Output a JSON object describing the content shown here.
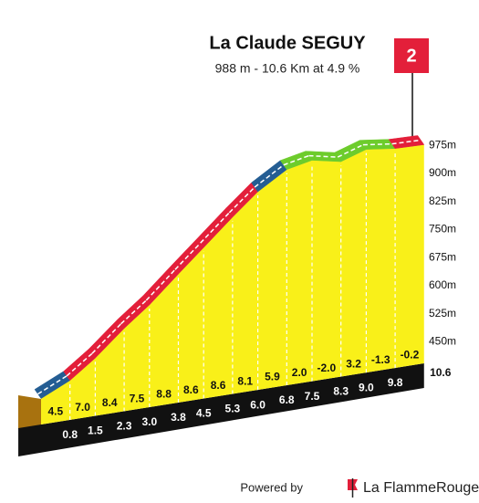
{
  "chart_data": {
    "type": "climb-profile",
    "title": "La Claude SEGUY",
    "subtitle": "988 m - 10.6 Km at 4.9 %",
    "category": "2",
    "x": [
      0,
      0.8,
      1.5,
      2.3,
      3.0,
      3.8,
      4.5,
      5.3,
      6.0,
      6.8,
      7.5,
      8.3,
      9.0,
      9.8,
      10.6
    ],
    "altitude": [
      462,
      498,
      547,
      614,
      666,
      736,
      796,
      865,
      922,
      969,
      983,
      967,
      989,
      979,
      977
    ],
    "gradients": [
      4.5,
      {
        "value": 7,
        "label": "7.0"
      },
      8.4,
      7.5,
      8.8,
      8.6,
      8.6,
      8.1,
      5.9,
      {
        "value": 2,
        "label": "2.0"
      },
      {
        "value": -2,
        "label": "-2.0"
      },
      3.2,
      -1.3,
      -0.2
    ],
    "segment_colors": [
      "#245d93",
      "#e31f3a",
      "#e31f3a",
      "#e31f3a",
      "#e31f3a",
      "#e31f3a",
      "#e31f3a",
      "#e31f3a",
      "#245d93",
      "#6dcc2c",
      "#6dcc2c",
      "#6dcc2c",
      "#6dcc2c",
      "#e31f3a"
    ],
    "xticks": [
      0.8,
      1.5,
      2.3,
      {
        "value": 3,
        "label": "3.0"
      },
      3.8,
      4.5,
      5.3,
      {
        "value": 6,
        "label": "6.0"
      },
      6.8,
      7.5,
      8.3,
      {
        "value": 9,
        "label": "9.0"
      },
      9.8,
      10.6
    ],
    "yticks": [
      {
        "value": 975,
        "label": "975m"
      },
      {
        "value": 900,
        "label": "900m"
      },
      {
        "value": 825,
        "label": "825m"
      },
      {
        "value": 750,
        "label": "750m"
      },
      {
        "value": 675,
        "label": "675m"
      },
      {
        "value": 600,
        "label": "600m"
      },
      {
        "value": 525,
        "label": "525m"
      },
      {
        "value": 450,
        "label": "450m"
      }
    ],
    "face_color": "#f9f019",
    "footer": "Powered by",
    "brand": "La FlammeRouge"
  }
}
